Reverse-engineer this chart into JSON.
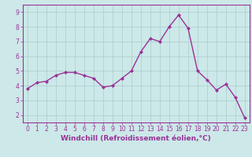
{
  "x": [
    0,
    1,
    2,
    3,
    4,
    5,
    6,
    7,
    8,
    9,
    10,
    11,
    12,
    13,
    14,
    15,
    16,
    17,
    18,
    19,
    20,
    21,
    22,
    23
  ],
  "y": [
    3.8,
    4.2,
    4.3,
    4.7,
    4.9,
    4.9,
    4.7,
    4.5,
    3.9,
    4.0,
    4.5,
    5.0,
    6.3,
    7.2,
    7.0,
    8.0,
    8.8,
    7.9,
    5.0,
    4.4,
    3.7,
    4.1,
    3.2,
    1.8
  ],
  "line_color": "#993399",
  "marker": "D",
  "marker_size": 2.0,
  "bg_color": "#cce8e8",
  "grid_color": "#aacccc",
  "ylim": [
    1.5,
    9.5
  ],
  "xlim": [
    -0.5,
    23.5
  ],
  "yticks": [
    2,
    3,
    4,
    5,
    6,
    7,
    8,
    9
  ],
  "xticks": [
    0,
    1,
    2,
    3,
    4,
    5,
    6,
    7,
    8,
    9,
    10,
    11,
    12,
    13,
    14,
    15,
    16,
    17,
    18,
    19,
    20,
    21,
    22,
    23
  ],
  "xlabel": "Windchill (Refroidissement éolien,°C)",
  "xlabel_fontsize": 6.5,
  "tick_fontsize": 5.5,
  "axis_color": "#993399",
  "line_width": 1.0
}
